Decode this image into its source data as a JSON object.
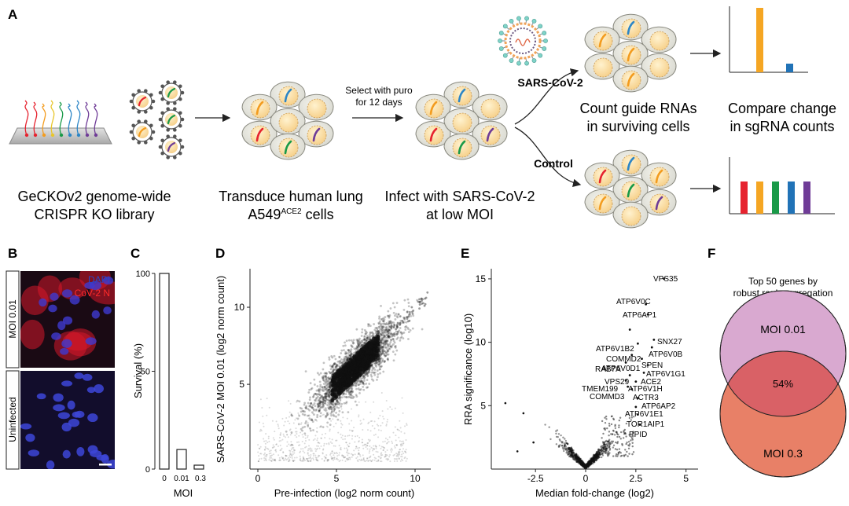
{
  "panel_a": {
    "letter": "A",
    "library_label": [
      "GeCKOv2 genome-wide",
      "CRISPR KO library"
    ],
    "transduce_label": [
      "Transduce human lung",
      "A549",
      "ACE2",
      " cells"
    ],
    "select_label": [
      "Select with puro",
      "for 12 days"
    ],
    "infect_label": [
      "Infect with SARS-CoV-2",
      "at low MOI"
    ],
    "sars_label": "SARS-CoV-2",
    "control_label": "Control",
    "count_label": [
      "Count guide RNAs",
      "in surviving cells"
    ],
    "compare_label": [
      "Compare change",
      "in sgRNA counts"
    ],
    "guide_colors": [
      "#e6232f",
      "#f39c1f",
      "#e8c62d",
      "#1a9a48",
      "#2d86c6",
      "#6f3c97"
    ],
    "bar_orange": "#f5a623",
    "bar_blue": "#2173b7"
  },
  "panel_b": {
    "letter": "B",
    "row1_label": "MOI 0.01",
    "row2_label": "Uninfected",
    "legend_dapi": "DAPI",
    "legend_cov": "CoV-2 N",
    "dapi_color": "#2747c9",
    "cov_color": "#ff2a2a"
  },
  "panel_c": {
    "letter": "C",
    "chart_data": {
      "type": "bar",
      "categories": [
        "0",
        "0.01",
        "0.3"
      ],
      "values": [
        100,
        10,
        2
      ],
      "xlabel": "MOI",
      "ylabel": "Survival (%)",
      "ylim": [
        0,
        100
      ],
      "yticks": [
        0,
        50,
        100
      ]
    }
  },
  "panel_d": {
    "letter": "D",
    "chart_data": {
      "type": "scatter",
      "xlabel": "Pre-infection (log2 norm count)",
      "ylabel": "SARS-CoV-2 MOI 0.01 (log2 norm count)",
      "xlim": [
        -0.5,
        11
      ],
      "ylim": [
        -0.5,
        12.5
      ],
      "xticks": [
        0,
        5,
        10
      ],
      "yticks": [
        5,
        10
      ],
      "description": "dense cloud of sgRNA counts centered near (6.2, 6.2)"
    }
  },
  "panel_e": {
    "letter": "E",
    "chart_data": {
      "type": "scatter",
      "xlabel": "Median fold-change (log2)",
      "ylabel": "RRA significance (log10)",
      "xlim": [
        -4.7,
        5.6
      ],
      "ylim": [
        0,
        15.8
      ],
      "xticks": [
        -2.5,
        0,
        2.5,
        5
      ],
      "yticks": [
        5,
        10,
        15
      ],
      "labeled_points": [
        {
          "label": "VPS35",
          "x": 3.9,
          "y": 15.0
        },
        {
          "label": "ATP6V0C",
          "x": 3.0,
          "y": 13.0
        },
        {
          "label": "ATP6AP1",
          "x": 3.1,
          "y": 12.2
        },
        {
          "label": "ATP6V1B2",
          "x": 2.2,
          "y": 11.0
        },
        {
          "label": "SNX27",
          "x": 3.4,
          "y": 10.2
        },
        {
          "label": "ATP6V0D1",
          "x": 2.6,
          "y": 9.9
        },
        {
          "label": "ATP6V0B",
          "x": 3.3,
          "y": 9.6
        },
        {
          "label": "COMMD2",
          "x": 2.3,
          "y": 9.0
        },
        {
          "label": "SPEN",
          "x": 2.8,
          "y": 8.7
        },
        {
          "label": "RAB7A",
          "x": 2.0,
          "y": 8.4
        },
        {
          "label": "ATP6V1G1",
          "x": 3.1,
          "y": 8.2
        },
        {
          "label": "ACE2",
          "x": 2.9,
          "y": 7.6
        },
        {
          "label": "VPS29",
          "x": 2.2,
          "y": 7.4
        },
        {
          "label": "ATP6V1H",
          "x": 2.5,
          "y": 6.9
        },
        {
          "label": "TMEM199",
          "x": 2.0,
          "y": 7.0
        },
        {
          "label": "ACTR3",
          "x": 2.3,
          "y": 6.3
        },
        {
          "label": "COMMD3",
          "x": 2.1,
          "y": 6.5
        },
        {
          "label": "ATP6AP2",
          "x": 2.6,
          "y": 5.6
        },
        {
          "label": "ATP6V1E1",
          "x": 2.5,
          "y": 4.9
        },
        {
          "label": "TOR1AIP1",
          "x": 2.6,
          "y": 4.3
        },
        {
          "label": "PPID",
          "x": 2.7,
          "y": 3.5
        }
      ]
    }
  },
  "panel_f": {
    "letter": "F",
    "title": [
      "Top 50 genes by",
      "robust rank aggregation"
    ],
    "set1_label": "MOI 0.01",
    "set2_label": "MOI 0.3",
    "overlap_label": "54%",
    "set1_color": "#d9a9d0",
    "set2_color": "#e88067",
    "overlap_color": "#d96166"
  }
}
